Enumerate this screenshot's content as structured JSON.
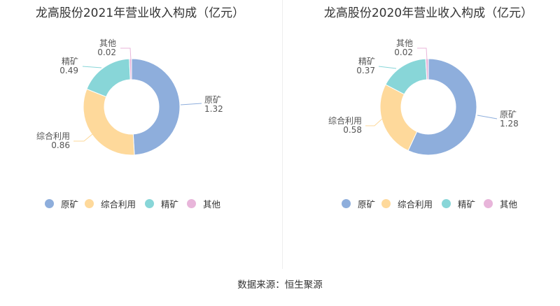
{
  "colors": [
    "#8eaedc",
    "#fed99b",
    "#88d6d8",
    "#e8b5da"
  ],
  "chart_data": [
    {
      "type": "pie",
      "donut": true,
      "title": "龙高股份2021年营业收入构成（亿元）",
      "categories": [
        "原矿",
        "综合利用",
        "精矿",
        "其他"
      ],
      "values": [
        1.32,
        0.86,
        0.49,
        0.02
      ],
      "value_labels": [
        "1.32",
        "0.86",
        "0.49",
        "0.02"
      ],
      "legend_position": "bottom"
    },
    {
      "type": "pie",
      "donut": true,
      "title": "龙高股份2020年营业收入构成（亿元）",
      "categories": [
        "原矿",
        "综合利用",
        "精矿",
        "其他"
      ],
      "values": [
        1.28,
        0.58,
        0.37,
        0.02
      ],
      "value_labels": [
        "1.28",
        "0.58",
        "0.37",
        "0.02"
      ],
      "legend_position": "bottom"
    }
  ],
  "source": "数据来源：恒生聚源"
}
